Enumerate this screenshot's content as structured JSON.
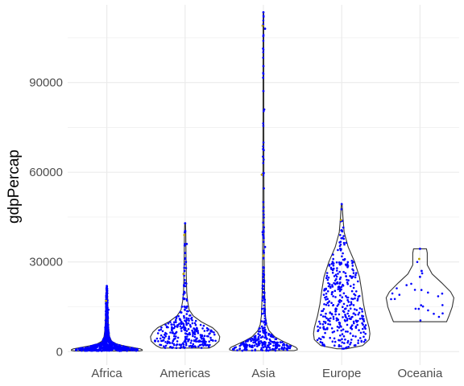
{
  "chart_data": {
    "type": "violin",
    "title": "",
    "xlabel": "",
    "ylabel": "gdpPercap",
    "ylim": [
      -4500,
      116000
    ],
    "y_ticks": [
      0,
      30000,
      60000,
      90000
    ],
    "y_tick_labels": [
      "0",
      "30000",
      "60000",
      "90000"
    ],
    "categories": [
      "Africa",
      "Americas",
      "Asia",
      "Europe",
      "Oceania"
    ],
    "grid": true,
    "colors": {
      "violin_outline": "#333333",
      "points": "#0000ff",
      "grid": "#ebebeb",
      "highlight_points": "#b8a000"
    },
    "violins": [
      {
        "category": "Africa",
        "ymin": 240,
        "ymax": 21950,
        "profile": [
          [
            240,
            40
          ],
          [
            400,
            44
          ],
          [
            600,
            44
          ],
          [
            900,
            42
          ],
          [
            1200,
            36
          ],
          [
            1600,
            28
          ],
          [
            2000,
            20
          ],
          [
            2600,
            12
          ],
          [
            3500,
            6
          ],
          [
            5000,
            3.5
          ],
          [
            7000,
            2.5
          ],
          [
            9000,
            2
          ],
          [
            12000,
            1.6
          ],
          [
            15000,
            1.3
          ],
          [
            18000,
            1.1
          ],
          [
            21950,
            0.5
          ]
        ]
      },
      {
        "category": "Americas",
        "ymin": 1200,
        "ymax": 42950,
        "profile": [
          [
            1200,
            30
          ],
          [
            2000,
            36
          ],
          [
            3500,
            42
          ],
          [
            5000,
            43
          ],
          [
            6500,
            40
          ],
          [
            8000,
            34
          ],
          [
            10000,
            20
          ],
          [
            12000,
            10
          ],
          [
            14000,
            5
          ],
          [
            17000,
            3
          ],
          [
            20000,
            2
          ],
          [
            25000,
            1.5
          ],
          [
            30000,
            1.2
          ],
          [
            35000,
            1
          ],
          [
            40000,
            0.8
          ],
          [
            42950,
            0.4
          ]
        ]
      },
      {
        "category": "Asia",
        "ymin": 330,
        "ymax": 113500,
        "profile": [
          [
            330,
            38
          ],
          [
            600,
            42
          ],
          [
            1000,
            42
          ],
          [
            1500,
            40
          ],
          [
            2500,
            32
          ],
          [
            3500,
            24
          ],
          [
            5000,
            14
          ],
          [
            7000,
            7
          ],
          [
            9000,
            4
          ],
          [
            12000,
            2.5
          ],
          [
            16000,
            2
          ],
          [
            20000,
            1.5
          ],
          [
            25000,
            1.2
          ],
          [
            30000,
            1
          ],
          [
            40000,
            0.8
          ],
          [
            60000,
            0.6
          ],
          [
            80000,
            0.5
          ],
          [
            100000,
            0.5
          ],
          [
            113500,
            0.4
          ]
        ]
      },
      {
        "category": "Europe",
        "ymin": 970,
        "ymax": 49350,
        "profile": [
          [
            970,
            6
          ],
          [
            2000,
            26
          ],
          [
            4000,
            34
          ],
          [
            6000,
            35
          ],
          [
            8000,
            34
          ],
          [
            12000,
            30
          ],
          [
            16000,
            27
          ],
          [
            20000,
            25
          ],
          [
            25000,
            22
          ],
          [
            30000,
            16
          ],
          [
            35000,
            8
          ],
          [
            40000,
            3
          ],
          [
            45000,
            1.5
          ],
          [
            49350,
            0.5
          ]
        ]
      },
      {
        "category": "Oceania",
        "ymin": 10000,
        "ymax": 34400,
        "profile": [
          [
            10000,
            33
          ],
          [
            12000,
            36
          ],
          [
            15000,
            40
          ],
          [
            18000,
            42
          ],
          [
            20000,
            38
          ],
          [
            23000,
            27
          ],
          [
            26000,
            15
          ],
          [
            29000,
            9
          ],
          [
            31000,
            9
          ],
          [
            33000,
            9
          ],
          [
            34400,
            8
          ]
        ]
      }
    ],
    "points_per_group": [
      624,
      300,
      396,
      360,
      24
    ],
    "notable_values": {
      "Africa": [
        21950,
        17000,
        14000,
        12500
      ],
      "Americas": [
        42950,
        39000,
        36000,
        33000,
        30000,
        26000,
        23000,
        20000
      ],
      "Asia": [
        113500,
        109000,
        108000,
        95500,
        81000,
        59200,
        47000,
        40000,
        35000,
        32000
      ],
      "Europe": [
        49350,
        44000,
        41500,
        40500,
        38000
      ],
      "Oceania": [
        34400,
        31000,
        27000,
        25000
      ]
    }
  }
}
